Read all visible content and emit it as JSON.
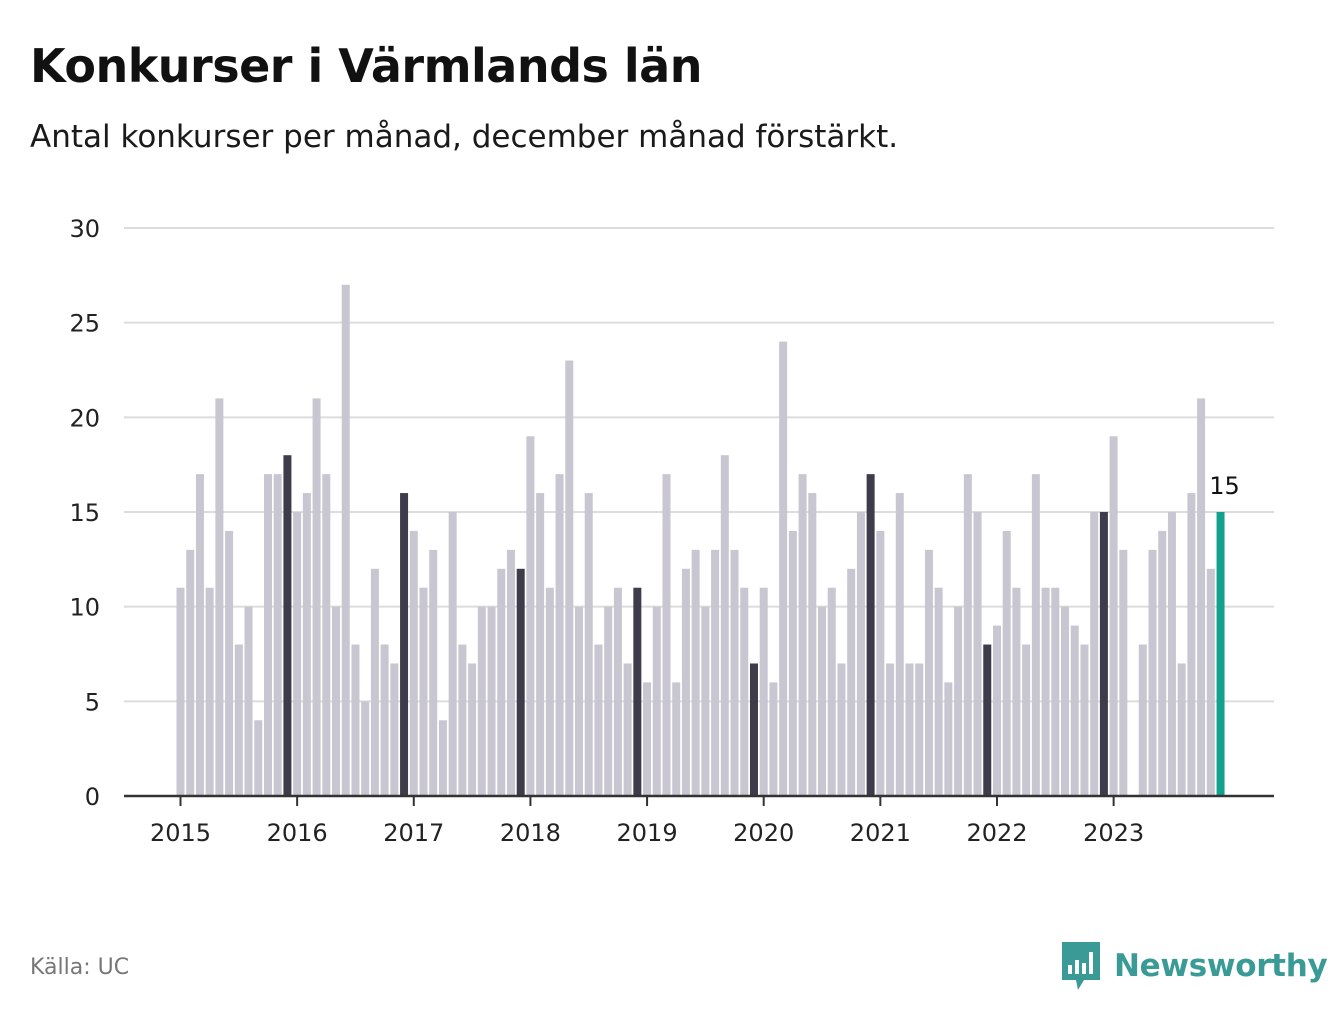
{
  "header": {
    "title": "Konkurser i Värmlands län",
    "subtitle": "Antal konkurser per månad, december månad förstärkt."
  },
  "footer": {
    "source": "Källa: UC",
    "brand_name": "Newsworthy"
  },
  "colors": {
    "bar_default": "#c8c6d0",
    "bar_december": "#3e3c4b",
    "bar_latest": "#13a08d",
    "grid": "#dcdcdc",
    "axis": "#333333",
    "brand": "#3a9a96"
  },
  "chart_data": {
    "type": "bar",
    "title": "Konkurser i Värmlands län",
    "subtitle": "Antal konkurser per månad, december månad förstärkt.",
    "xlabel": "",
    "ylabel": "",
    "ylim": [
      0,
      30
    ],
    "yticks": [
      0,
      5,
      10,
      15,
      20,
      25,
      30
    ],
    "grid": true,
    "start": "2015-01",
    "end": "2023-12",
    "year_ticks": [
      "2015",
      "2016",
      "2017",
      "2018",
      "2019",
      "2020",
      "2021",
      "2022",
      "2023"
    ],
    "highlight": "december",
    "latest_label": "15",
    "values": [
      11,
      13,
      17,
      11,
      21,
      14,
      8,
      10,
      4,
      17,
      17,
      18,
      15,
      16,
      21,
      17,
      10,
      27,
      8,
      5,
      12,
      8,
      7,
      16,
      14,
      11,
      13,
      4,
      15,
      8,
      7,
      10,
      10,
      12,
      13,
      12,
      19,
      16,
      11,
      17,
      23,
      10,
      16,
      8,
      10,
      11,
      7,
      11,
      6,
      10,
      17,
      6,
      12,
      13,
      10,
      13,
      18,
      13,
      11,
      7,
      11,
      6,
      24,
      14,
      17,
      16,
      10,
      11,
      7,
      12,
      15,
      17,
      14,
      7,
      16,
      7,
      7,
      13,
      11,
      6,
      10,
      17,
      15,
      8,
      9,
      14,
      11,
      8,
      17,
      11,
      11,
      10,
      9,
      8,
      15,
      15,
      19,
      13,
      0,
      8,
      13,
      14,
      15,
      7,
      16,
      21,
      12,
      15
    ]
  }
}
